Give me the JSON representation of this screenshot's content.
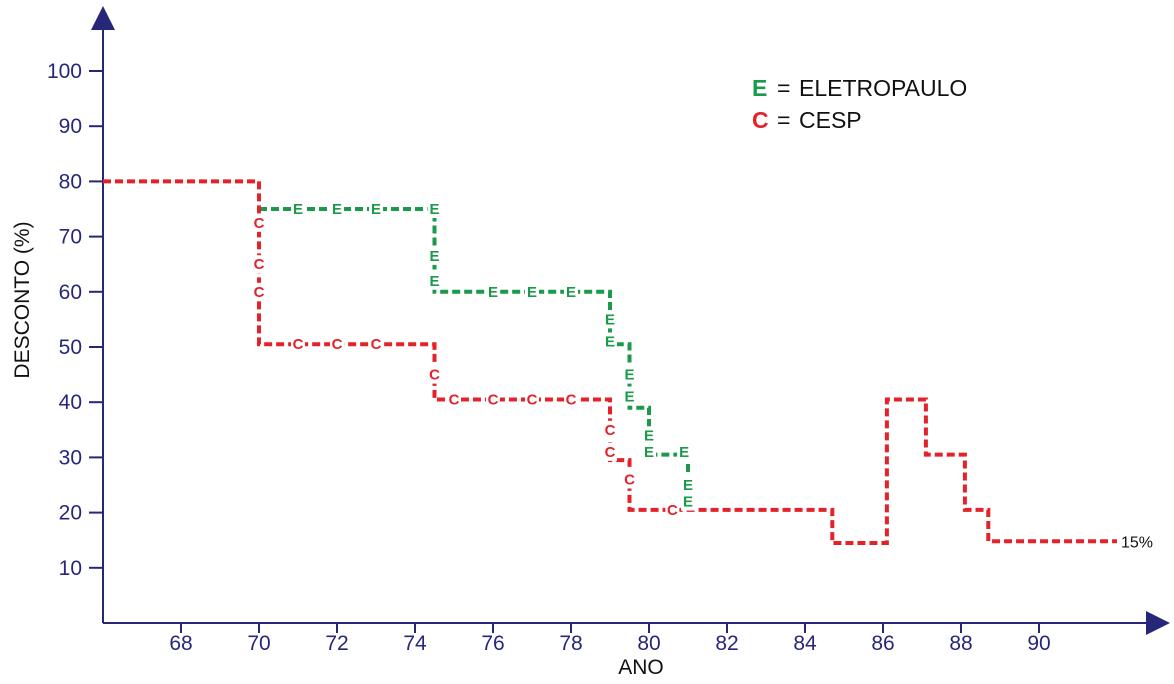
{
  "chart_data": {
    "type": "line",
    "xlabel": "ANO",
    "ylabel": "DESCONTO (%)",
    "xlim": [
      66,
      92
    ],
    "ylim": [
      0,
      100
    ],
    "xticks": [
      68,
      70,
      72,
      74,
      76,
      78,
      80,
      82,
      84,
      86,
      88,
      90
    ],
    "yticks": [
      10,
      20,
      30,
      40,
      50,
      60,
      70,
      80,
      90,
      100
    ],
    "grid": false,
    "legend": {
      "position": "top-right",
      "entries": [
        {
          "key": "E",
          "sep": "=",
          "text": "ELETROPAULO",
          "color": "#1a9a4a"
        },
        {
          "key": "C",
          "sep": "=",
          "text": "CESP",
          "color": "#e3222a"
        }
      ]
    },
    "series": [
      {
        "name": "ELETROPAULO",
        "marker": "E",
        "color": "#1a9a4a",
        "points": [
          [
            70,
            75
          ],
          [
            74.5,
            75
          ],
          [
            74.5,
            60
          ],
          [
            79,
            60
          ],
          [
            79,
            50.5
          ],
          [
            79.5,
            50.5
          ],
          [
            79.5,
            39
          ],
          [
            80,
            39
          ],
          [
            80,
            30.5
          ],
          [
            81,
            30.5
          ],
          [
            81,
            20.5
          ]
        ],
        "markers": [
          [
            71,
            75
          ],
          [
            72,
            75
          ],
          [
            73,
            75
          ],
          [
            74.5,
            75
          ],
          [
            74.5,
            66.5
          ],
          [
            74.5,
            62
          ],
          [
            76,
            60
          ],
          [
            77,
            60
          ],
          [
            78,
            60
          ],
          [
            79,
            55
          ],
          [
            79,
            51
          ],
          [
            79.5,
            45
          ],
          [
            79.5,
            41
          ],
          [
            80,
            34
          ],
          [
            80,
            31
          ],
          [
            80.9,
            31
          ],
          [
            81,
            25
          ],
          [
            81,
            22
          ]
        ]
      },
      {
        "name": "CESP",
        "marker": "C",
        "color": "#e3222a",
        "points": [
          [
            66,
            80
          ],
          [
            70,
            80
          ],
          [
            70,
            50.5
          ],
          [
            74.5,
            50.5
          ],
          [
            74.5,
            40.5
          ],
          [
            79,
            40.5
          ],
          [
            79,
            29.5
          ],
          [
            79.5,
            29.5
          ],
          [
            79.5,
            20.5
          ],
          [
            84.7,
            20.5
          ],
          [
            84.7,
            14.5
          ],
          [
            86.1,
            14.5
          ],
          [
            86.1,
            40.5
          ],
          [
            87.1,
            40.5
          ],
          [
            87.1,
            30.5
          ],
          [
            88.1,
            30.5
          ],
          [
            88.1,
            20.5
          ],
          [
            88.7,
            20.5
          ],
          [
            88.7,
            14.8
          ],
          [
            92,
            14.8
          ]
        ],
        "markers": [
          [
            70,
            72.5
          ],
          [
            70,
            65
          ],
          [
            70,
            60
          ],
          [
            71,
            50.5
          ],
          [
            72,
            50.5
          ],
          [
            73,
            50.5
          ],
          [
            74.5,
            45
          ],
          [
            75,
            40.5
          ],
          [
            76,
            40.5
          ],
          [
            77,
            40.5
          ],
          [
            78,
            40.5
          ],
          [
            79,
            35
          ],
          [
            79,
            31
          ],
          [
            79.5,
            26
          ],
          [
            80.6,
            20.5
          ]
        ]
      }
    ],
    "annotations": [
      {
        "text": "15%",
        "x": 92,
        "y": 14.8
      }
    ]
  }
}
